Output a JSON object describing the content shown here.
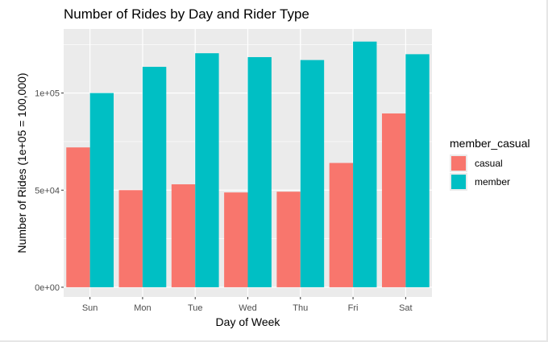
{
  "chart_data": {
    "type": "bar",
    "title": "Number of Rides by Day and Rider Type",
    "xlabel": "Day of Week",
    "ylabel": "Number of Rides (1e+05 = 100,000)",
    "categories": [
      "Sun",
      "Mon",
      "Tue",
      "Wed",
      "Thu",
      "Fri",
      "Sat"
    ],
    "series": [
      {
        "name": "casual",
        "color": "#F8766D",
        "values": [
          72000,
          50000,
          53000,
          48800,
          49200,
          64000,
          89500
        ]
      },
      {
        "name": "member",
        "color": "#00BFC4",
        "values": [
          100000,
          113500,
          120500,
          118500,
          117000,
          126500,
          120000
        ]
      }
    ],
    "ylim": [
      -5000,
      133000
    ],
    "yticks": [
      0,
      50000,
      100000
    ],
    "ytick_labels": [
      "0e+00",
      "5e+04",
      "1e+05"
    ],
    "legend_title": "member_casual",
    "legend_position": "right",
    "grid": true
  }
}
